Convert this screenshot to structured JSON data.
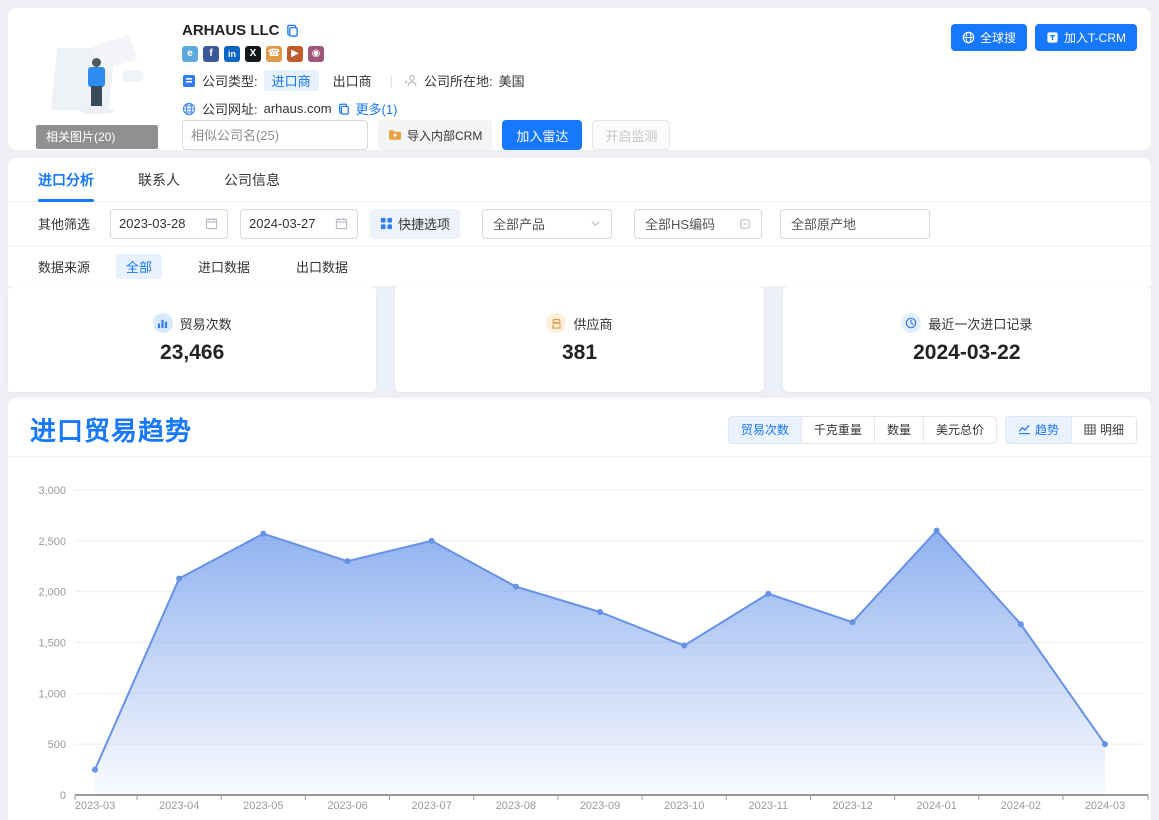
{
  "colors": {
    "accent": "#1677ff",
    "active_bg": "#e8f1fe",
    "stats_band_bg": "#eef0f8"
  },
  "header": {
    "company_name": "ARHAUS LLC",
    "related_images_label": "相关图片(20)",
    "social_icons": [
      {
        "name": "website-icon",
        "glyph": "e",
        "color": "#5fa8dd"
      },
      {
        "name": "facebook-icon",
        "glyph": "f",
        "color": "#3b5998"
      },
      {
        "name": "linkedin-icon",
        "glyph": "in",
        "color": "#0a66c2"
      },
      {
        "name": "x-icon",
        "glyph": "X",
        "color": "#14171a"
      },
      {
        "name": "phone-icon",
        "glyph": "☎",
        "color": "#e09a4a"
      },
      {
        "name": "youtube-icon",
        "glyph": "▶",
        "color": "#bf5b2d"
      },
      {
        "name": "instagram-icon",
        "glyph": "◉",
        "color": "#a0567c"
      }
    ],
    "company_type_label": "公司类型:",
    "importer_tag": "进口商",
    "exporter_tag": "出口商",
    "location_label": "公司所在地:",
    "location_value": "美国",
    "website_label": "公司网址:",
    "website_value": "arhaus.com",
    "more_label": "更多(1)",
    "similar_company_placeholder": "相似公司名(25)",
    "import_crm_button": "导入内部CRM",
    "add_radar_button": "加入雷达",
    "monitor_button": "开启监测",
    "global_search_button": "全球搜",
    "join_tcrm_button": "加入T-CRM"
  },
  "tabs": [
    {
      "label": "进口分析",
      "active": true
    },
    {
      "label": "联系人",
      "active": false
    },
    {
      "label": "公司信息",
      "active": false
    }
  ],
  "filters": {
    "other_label": "其他筛选",
    "date_start": "2023-03-28",
    "date_end": "2024-03-27",
    "quick_options": "快捷选项",
    "products_all": "全部产品",
    "hs_all": "全部HS编码",
    "origin_all": "全部原产地",
    "data_source_label": "数据来源",
    "source_options": [
      "全部",
      "进口数据",
      "出口数据"
    ]
  },
  "stats": [
    {
      "icon": "bar-chart-icon",
      "label": "贸易次数",
      "value": "23,466"
    },
    {
      "icon": "factory-icon",
      "label": "供应商",
      "value": "381"
    },
    {
      "icon": "clock-icon",
      "label": "最近一次进口记录",
      "value": "2024-03-22"
    }
  ],
  "trend_section": {
    "title": "进口贸易趋势",
    "metric_tabs": [
      "贸易次数",
      "千克重量",
      "数量",
      "美元总价"
    ],
    "view_tabs": [
      "趋势",
      "明细"
    ]
  },
  "chart_data": {
    "type": "area",
    "title": "进口贸易趋势",
    "x": [
      "2023-03",
      "2023-04",
      "2023-05",
      "2023-06",
      "2023-07",
      "2023-08",
      "2023-09",
      "2023-10",
      "2023-11",
      "2023-12",
      "2024-01",
      "2024-02",
      "2024-03"
    ],
    "series": [
      {
        "name": "贸易次数",
        "values": [
          250,
          2130,
          2570,
          2300,
          2500,
          2050,
          1800,
          1470,
          1980,
          1700,
          2600,
          1680,
          500
        ]
      }
    ],
    "ylim": [
      0,
      3000
    ],
    "ytick_interval": 500,
    "grid": true,
    "legend_position": "none",
    "xlabel": "",
    "ylabel": "",
    "line_color": "#6591e6",
    "fill_color": "#7da4ed",
    "axis_color": "#999999",
    "gridline_color": "#ededf1"
  }
}
